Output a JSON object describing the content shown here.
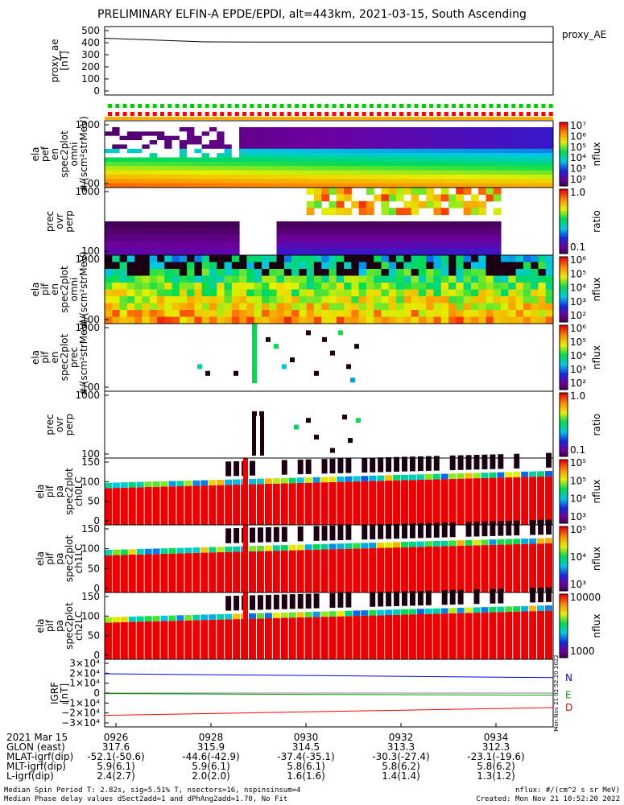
{
  "title": "PRELIMINARY ELFIN-A EPDE/EPDI, alt=443km, 2021-03-15, South Ascending",
  "colors": {
    "frame": "#000000",
    "igrf_n": "#0000ff",
    "igrf_e": "#00aa00",
    "igrf_d": "#ff0000",
    "white": "#ffffff"
  },
  "chart_data": [
    {
      "panel": "proxy_ae",
      "type": "line",
      "ylabel": [
        "proxy_ae",
        "[nT]"
      ],
      "yticks": [
        "500",
        "400",
        "300",
        "200",
        "100",
        "0"
      ],
      "ylim": [
        0,
        500
      ],
      "legend": "proxy_AE",
      "values": [
        470,
        455,
        440,
        438,
        438,
        438,
        438,
        438,
        438,
        438
      ]
    },
    {
      "panel": "elx_pef_en_spec2plot_omni",
      "type": "heatmap",
      "ylabel": [
        "ela",
        "pef",
        "en",
        "spec2plot",
        "omni",
        "#/(scm²strMeV)"
      ],
      "yticks": [
        "1000",
        "100"
      ],
      "colorbar": {
        "label": "nflux",
        "ticks": [
          "10⁷",
          "10⁶",
          "10⁵",
          "10⁴",
          "10³",
          "10²"
        ]
      }
    },
    {
      "panel": "prec_ovr_perp_e",
      "type": "heatmap",
      "ylabel": [
        "prec",
        "ovr",
        "perp"
      ],
      "yticks": [
        "1000",
        "100"
      ],
      "colorbar": {
        "label": "ratio",
        "ticks": [
          "1.0",
          "0.1"
        ]
      }
    },
    {
      "panel": "ela_pif_en_spec2plot_omni",
      "type": "heatmap",
      "ylabel": [
        "ela",
        "pif",
        "en",
        "spec2plot",
        "omni",
        "#/(scm²strMeV)"
      ],
      "yticks": [
        "1000",
        "100"
      ],
      "colorbar": {
        "label": "nflux",
        "ticks": [
          "10⁶",
          "10⁵",
          "10⁴",
          "10³",
          "10²"
        ]
      }
    },
    {
      "panel": "ela_pif_en_spec2plot_prec",
      "type": "heatmap",
      "ylabel": [
        "ela",
        "pif",
        "en",
        "spec2plot",
        "prec",
        "#/(scm²strMeV)"
      ],
      "yticks": [
        "1000",
        "100"
      ],
      "colorbar": {
        "label": "nflux",
        "ticks": [
          "10⁶",
          "10⁵",
          "10⁴",
          "10³",
          "10²"
        ]
      }
    },
    {
      "panel": "prec_ovr_perp_i",
      "type": "heatmap",
      "ylabel": [
        "prec",
        "ovr",
        "perp"
      ],
      "yticks": [
        "1000",
        "100"
      ],
      "colorbar": {
        "label": "ratio",
        "ticks": [
          "1.0",
          "0.1"
        ]
      }
    },
    {
      "panel": "pa_ch0LC",
      "type": "heatmap",
      "ylabel": [
        "ela",
        "pif",
        "pa",
        "spec2plot",
        "ch0LC"
      ],
      "yticks": [
        "150",
        "100",
        "50",
        "0"
      ],
      "colorbar": {
        "label": "nflux",
        "ticks": [
          "10⁵",
          "10⁵",
          "10⁴",
          "10³"
        ]
      }
    },
    {
      "panel": "pa_ch1LC",
      "type": "heatmap",
      "ylabel": [
        "ela",
        "pif",
        "pa",
        "spec2plot",
        "ch1LC"
      ],
      "yticks": [
        "150",
        "100",
        "50",
        "0"
      ],
      "colorbar": {
        "label": "nflux",
        "ticks": [
          "10⁵",
          "10⁴",
          "10³"
        ]
      }
    },
    {
      "panel": "pa_ch2LC",
      "type": "heatmap",
      "ylabel": [
        "ela",
        "pif",
        "pa",
        "spec2plot",
        "ch2LC"
      ],
      "yticks": [
        "150",
        "100",
        "50",
        "0"
      ],
      "colorbar": {
        "label": "nflux",
        "ticks": [
          "10000",
          "1000"
        ]
      }
    },
    {
      "panel": "igrf",
      "type": "line",
      "ylabel": [
        "IGRF",
        "[nT]"
      ],
      "yticks": [
        "3×10⁴",
        "2×10⁴",
        "1×10⁴",
        "0",
        "−1×10⁴",
        "−2×10⁴",
        "−3×10⁴"
      ],
      "ylim": [
        -30000,
        30000
      ],
      "side_label": "Mon Nov 21 02:52:20 2022",
      "series": [
        {
          "name": "N",
          "values": [
            20000,
            19000,
            18000,
            17000,
            16000
          ]
        },
        {
          "name": "E",
          "values": [
            -500,
            -1000,
            -1500,
            -1800,
            -2100
          ]
        },
        {
          "name": "D",
          "values": [
            -23000,
            -21000,
            -19000,
            -17000,
            -15000
          ]
        }
      ]
    }
  ],
  "xaxis": {
    "row_labels": [
      "2021 Mar 15",
      "GLON (east)",
      "MLAT-igrf(dip)",
      "MLT-igrf(dip)",
      "L-igrf(dip)"
    ],
    "ticks": [
      {
        "time": "0926",
        "glon": "317.6",
        "mlat": "-52.1(-50.6)",
        "mlt": "5.9(6.1)",
        "l": "2.4(2.7)"
      },
      {
        "time": "0928",
        "glon": "315.9",
        "mlat": "-44.6(-42.9)",
        "mlt": "5.9(6.1)",
        "l": "2.0(2.0)"
      },
      {
        "time": "0930",
        "glon": "314.5",
        "mlat": "-37.4(-35.1)",
        "mlt": "5.8(6.1)",
        "l": "1.6(1.6)"
      },
      {
        "time": "0932",
        "glon": "313.3",
        "mlat": "-30.3(-27.4)",
        "mlt": "5.8(6.2)",
        "l": "1.4(1.4)"
      },
      {
        "time": "0934",
        "glon": "312.3",
        "mlat": "-23.1(-19.6)",
        "mlt": "5.8(6.2)",
        "l": "1.3(1.2)"
      }
    ]
  },
  "footer": {
    "line1": "Median Spin Period T: 2.82s, sig=5.51% T, nsectors=16, nspinsinsum=4",
    "line2": "Median Phase delay values dSect2add=1 and dPhAng2add=1.70, No Fit",
    "right1": "nflux: #/(cm^2 s sr MeV)",
    "right2": "Created: Mon Nov 21 10:52:20 2022"
  }
}
